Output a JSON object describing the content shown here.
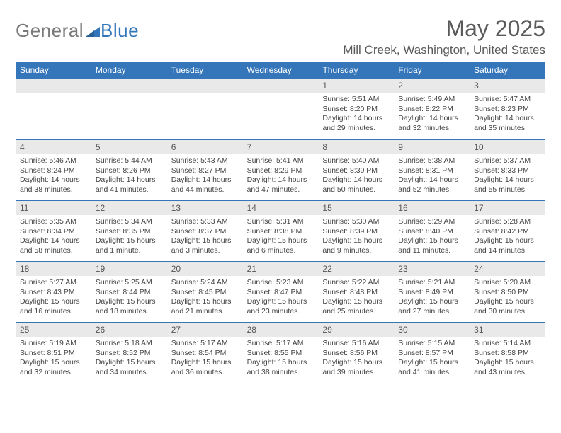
{
  "brand": {
    "part1": "General",
    "part2": "Blue"
  },
  "title": "May 2025",
  "location": "Mill Creek, Washington, United States",
  "colors": {
    "header_bar": "#3576ba",
    "daynum_bg": "#e9e9e9",
    "text": "#444444",
    "title_text": "#5a5a5a",
    "cell_border": "#3576ba"
  },
  "typography": {
    "month_title_fontsize": 32,
    "location_fontsize": 17,
    "weekday_fontsize": 12,
    "body_fontsize": 10.5
  },
  "layout": {
    "columns": 7,
    "rows": 5
  },
  "weekdays": [
    "Sunday",
    "Monday",
    "Tuesday",
    "Wednesday",
    "Thursday",
    "Friday",
    "Saturday"
  ],
  "cells": [
    {
      "num": "",
      "sunrise": "",
      "sunset": "",
      "daylight": ""
    },
    {
      "num": "",
      "sunrise": "",
      "sunset": "",
      "daylight": ""
    },
    {
      "num": "",
      "sunrise": "",
      "sunset": "",
      "daylight": ""
    },
    {
      "num": "",
      "sunrise": "",
      "sunset": "",
      "daylight": ""
    },
    {
      "num": "1",
      "sunrise": "Sunrise: 5:51 AM",
      "sunset": "Sunset: 8:20 PM",
      "daylight": "Daylight: 14 hours and 29 minutes."
    },
    {
      "num": "2",
      "sunrise": "Sunrise: 5:49 AM",
      "sunset": "Sunset: 8:22 PM",
      "daylight": "Daylight: 14 hours and 32 minutes."
    },
    {
      "num": "3",
      "sunrise": "Sunrise: 5:47 AM",
      "sunset": "Sunset: 8:23 PM",
      "daylight": "Daylight: 14 hours and 35 minutes."
    },
    {
      "num": "4",
      "sunrise": "Sunrise: 5:46 AM",
      "sunset": "Sunset: 8:24 PM",
      "daylight": "Daylight: 14 hours and 38 minutes."
    },
    {
      "num": "5",
      "sunrise": "Sunrise: 5:44 AM",
      "sunset": "Sunset: 8:26 PM",
      "daylight": "Daylight: 14 hours and 41 minutes."
    },
    {
      "num": "6",
      "sunrise": "Sunrise: 5:43 AM",
      "sunset": "Sunset: 8:27 PM",
      "daylight": "Daylight: 14 hours and 44 minutes."
    },
    {
      "num": "7",
      "sunrise": "Sunrise: 5:41 AM",
      "sunset": "Sunset: 8:29 PM",
      "daylight": "Daylight: 14 hours and 47 minutes."
    },
    {
      "num": "8",
      "sunrise": "Sunrise: 5:40 AM",
      "sunset": "Sunset: 8:30 PM",
      "daylight": "Daylight: 14 hours and 50 minutes."
    },
    {
      "num": "9",
      "sunrise": "Sunrise: 5:38 AM",
      "sunset": "Sunset: 8:31 PM",
      "daylight": "Daylight: 14 hours and 52 minutes."
    },
    {
      "num": "10",
      "sunrise": "Sunrise: 5:37 AM",
      "sunset": "Sunset: 8:33 PM",
      "daylight": "Daylight: 14 hours and 55 minutes."
    },
    {
      "num": "11",
      "sunrise": "Sunrise: 5:35 AM",
      "sunset": "Sunset: 8:34 PM",
      "daylight": "Daylight: 14 hours and 58 minutes."
    },
    {
      "num": "12",
      "sunrise": "Sunrise: 5:34 AM",
      "sunset": "Sunset: 8:35 PM",
      "daylight": "Daylight: 15 hours and 1 minute."
    },
    {
      "num": "13",
      "sunrise": "Sunrise: 5:33 AM",
      "sunset": "Sunset: 8:37 PM",
      "daylight": "Daylight: 15 hours and 3 minutes."
    },
    {
      "num": "14",
      "sunrise": "Sunrise: 5:31 AM",
      "sunset": "Sunset: 8:38 PM",
      "daylight": "Daylight: 15 hours and 6 minutes."
    },
    {
      "num": "15",
      "sunrise": "Sunrise: 5:30 AM",
      "sunset": "Sunset: 8:39 PM",
      "daylight": "Daylight: 15 hours and 9 minutes."
    },
    {
      "num": "16",
      "sunrise": "Sunrise: 5:29 AM",
      "sunset": "Sunset: 8:40 PM",
      "daylight": "Daylight: 15 hours and 11 minutes."
    },
    {
      "num": "17",
      "sunrise": "Sunrise: 5:28 AM",
      "sunset": "Sunset: 8:42 PM",
      "daylight": "Daylight: 15 hours and 14 minutes."
    },
    {
      "num": "18",
      "sunrise": "Sunrise: 5:27 AM",
      "sunset": "Sunset: 8:43 PM",
      "daylight": "Daylight: 15 hours and 16 minutes."
    },
    {
      "num": "19",
      "sunrise": "Sunrise: 5:25 AM",
      "sunset": "Sunset: 8:44 PM",
      "daylight": "Daylight: 15 hours and 18 minutes."
    },
    {
      "num": "20",
      "sunrise": "Sunrise: 5:24 AM",
      "sunset": "Sunset: 8:45 PM",
      "daylight": "Daylight: 15 hours and 21 minutes."
    },
    {
      "num": "21",
      "sunrise": "Sunrise: 5:23 AM",
      "sunset": "Sunset: 8:47 PM",
      "daylight": "Daylight: 15 hours and 23 minutes."
    },
    {
      "num": "22",
      "sunrise": "Sunrise: 5:22 AM",
      "sunset": "Sunset: 8:48 PM",
      "daylight": "Daylight: 15 hours and 25 minutes."
    },
    {
      "num": "23",
      "sunrise": "Sunrise: 5:21 AM",
      "sunset": "Sunset: 8:49 PM",
      "daylight": "Daylight: 15 hours and 27 minutes."
    },
    {
      "num": "24",
      "sunrise": "Sunrise: 5:20 AM",
      "sunset": "Sunset: 8:50 PM",
      "daylight": "Daylight: 15 hours and 30 minutes."
    },
    {
      "num": "25",
      "sunrise": "Sunrise: 5:19 AM",
      "sunset": "Sunset: 8:51 PM",
      "daylight": "Daylight: 15 hours and 32 minutes."
    },
    {
      "num": "26",
      "sunrise": "Sunrise: 5:18 AM",
      "sunset": "Sunset: 8:52 PM",
      "daylight": "Daylight: 15 hours and 34 minutes."
    },
    {
      "num": "27",
      "sunrise": "Sunrise: 5:17 AM",
      "sunset": "Sunset: 8:54 PM",
      "daylight": "Daylight: 15 hours and 36 minutes."
    },
    {
      "num": "28",
      "sunrise": "Sunrise: 5:17 AM",
      "sunset": "Sunset: 8:55 PM",
      "daylight": "Daylight: 15 hours and 38 minutes."
    },
    {
      "num": "29",
      "sunrise": "Sunrise: 5:16 AM",
      "sunset": "Sunset: 8:56 PM",
      "daylight": "Daylight: 15 hours and 39 minutes."
    },
    {
      "num": "30",
      "sunrise": "Sunrise: 5:15 AM",
      "sunset": "Sunset: 8:57 PM",
      "daylight": "Daylight: 15 hours and 41 minutes."
    },
    {
      "num": "31",
      "sunrise": "Sunrise: 5:14 AM",
      "sunset": "Sunset: 8:58 PM",
      "daylight": "Daylight: 15 hours and 43 minutes."
    }
  ]
}
